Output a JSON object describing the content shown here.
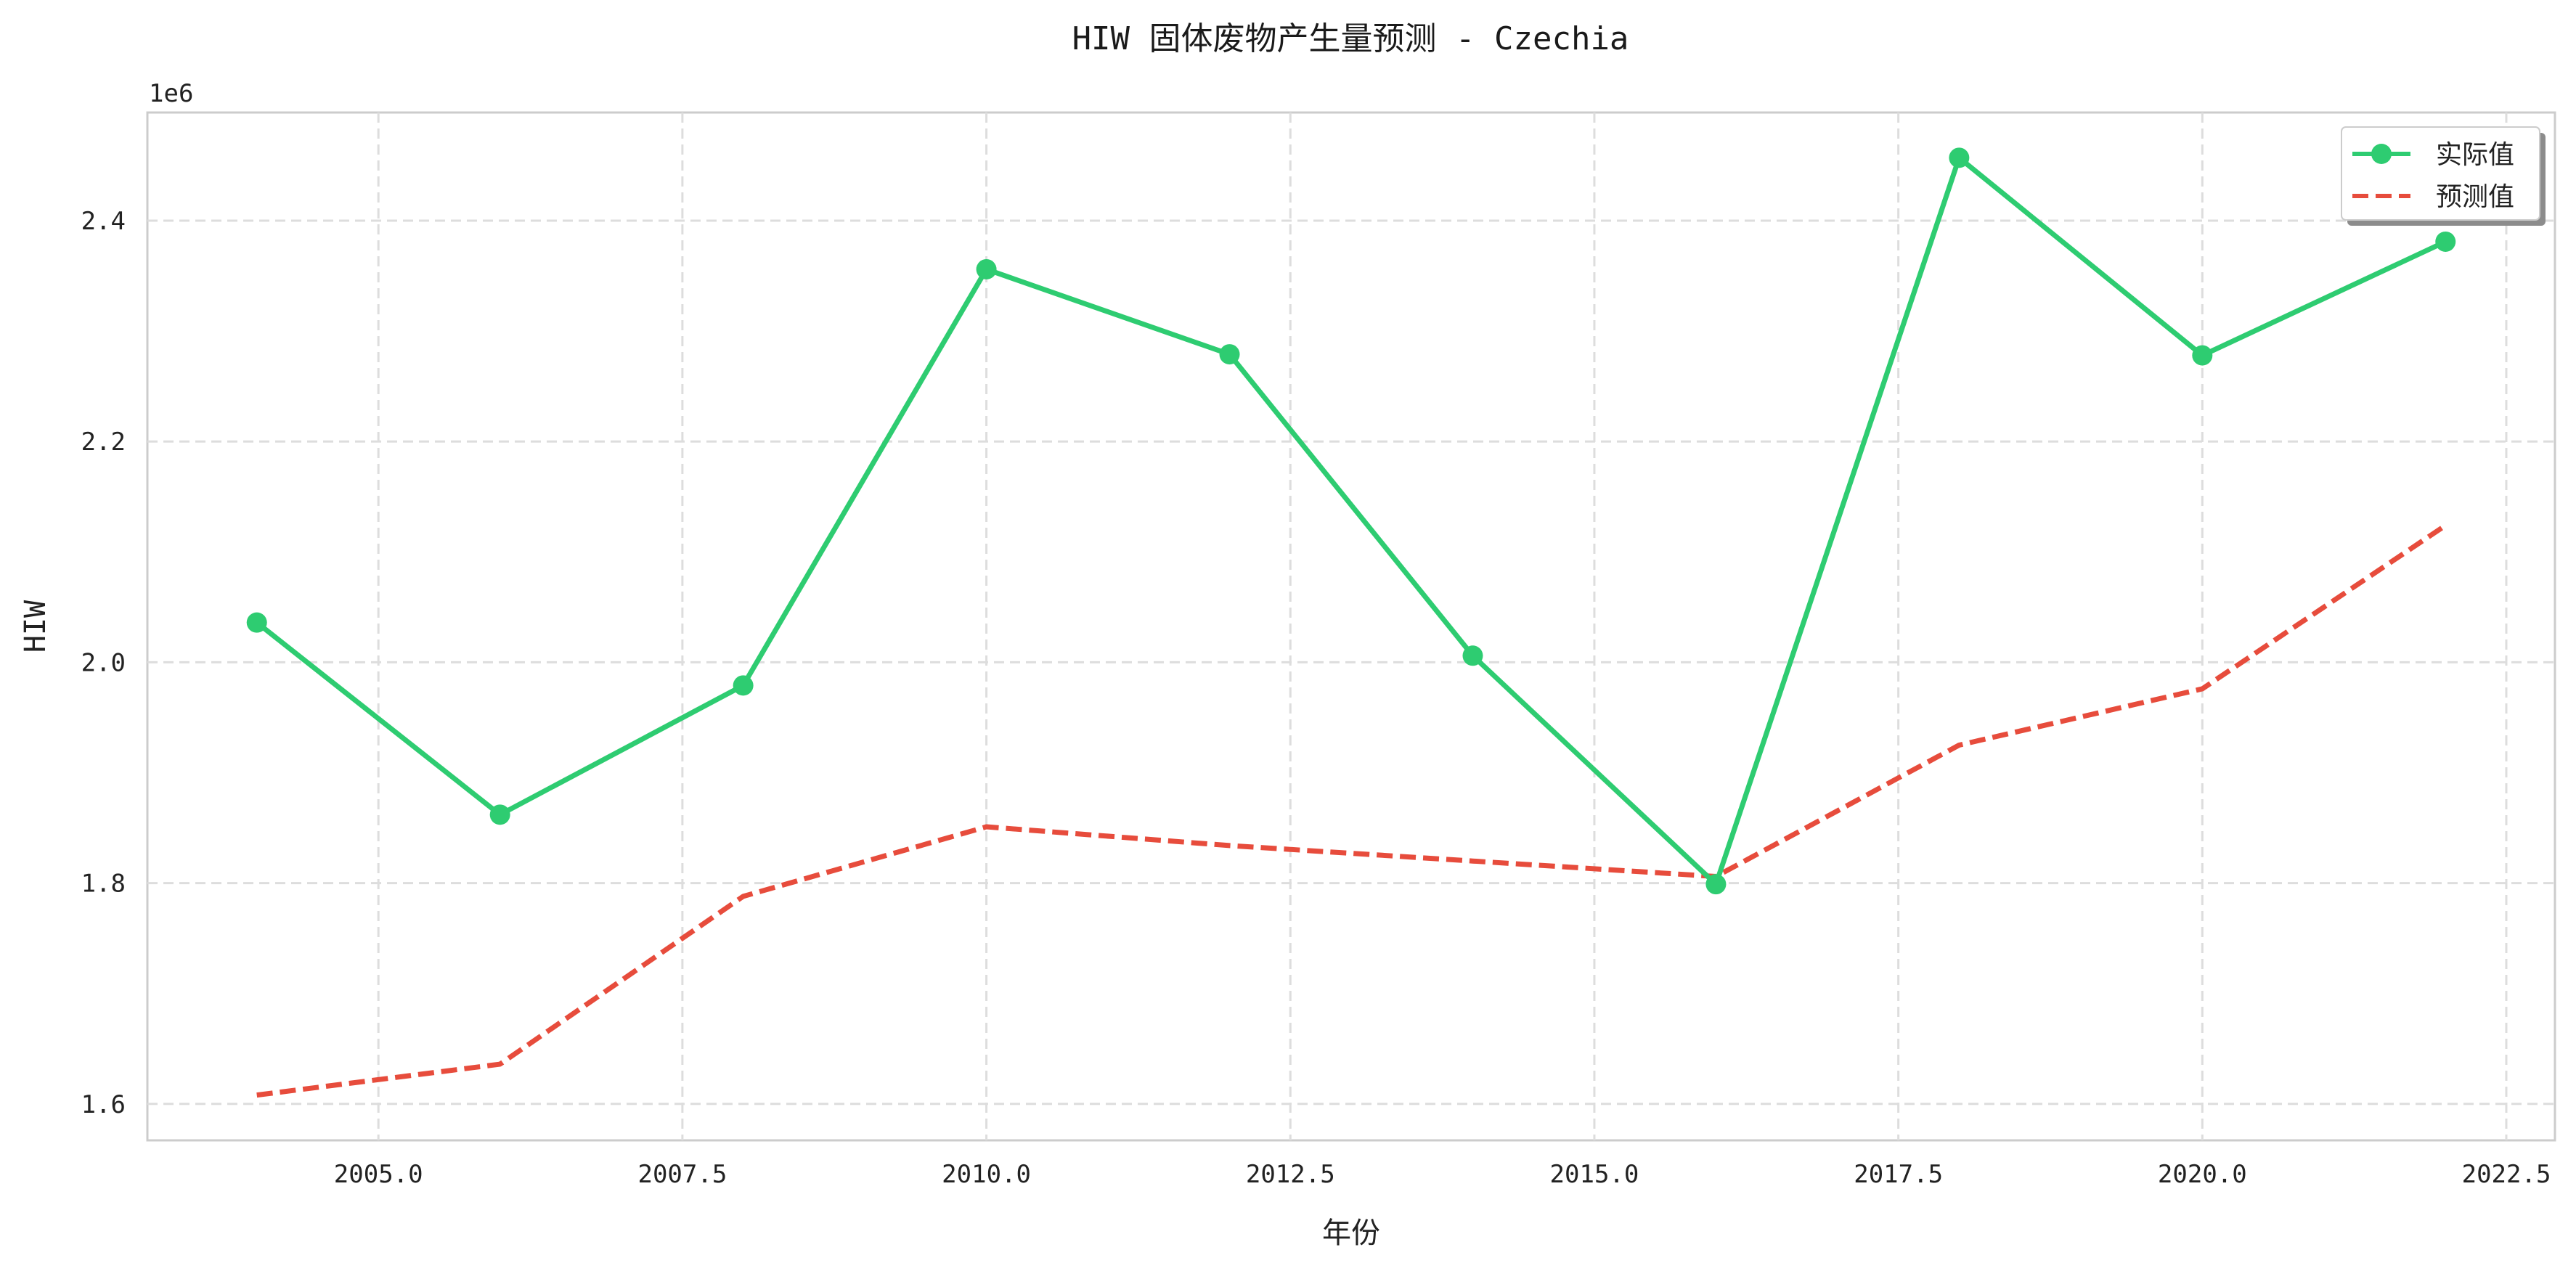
{
  "chart_data": {
    "type": "line",
    "title": "HIW 固体废物产生量预测 - Czechia",
    "xlabel": "年份",
    "ylabel": "HIW",
    "y_offset_label": "1e6",
    "xlim": [
      2003.1,
      2022.9
    ],
    "ylim": [
      1567000,
      2498000
    ],
    "x_ticks": [
      2005.0,
      2007.5,
      2010.0,
      2012.5,
      2015.0,
      2017.5,
      2020.0,
      2022.5
    ],
    "x_tick_labels": [
      "2005.0",
      "2007.5",
      "2010.0",
      "2012.5",
      "2015.0",
      "2017.5",
      "2020.0",
      "2022.5"
    ],
    "y_ticks": [
      1600000,
      1800000,
      2000000,
      2200000,
      2400000
    ],
    "y_tick_labels": [
      "1.6",
      "1.8",
      "2.0",
      "2.2",
      "2.4"
    ],
    "grid": true,
    "legend_placement": "top-right",
    "series": [
      {
        "name": "实际值",
        "color": "#2ecc71",
        "style": "solid-markers",
        "x": [
          2004,
          2006,
          2008,
          2010,
          2012,
          2014,
          2016,
          2018,
          2020,
          2022
        ],
        "values": [
          2036000,
          1862000,
          1979000,
          2356000,
          2279000,
          2006000,
          1799000,
          2457000,
          2278000,
          2381000
        ]
      },
      {
        "name": "预测值",
        "color": "#e74c3c",
        "style": "dashed",
        "x": [
          2004,
          2006,
          2008,
          2010,
          2012,
          2014,
          2016,
          2018,
          2020,
          2022
        ],
        "values": [
          1608000,
          1636000,
          1788000,
          1851000,
          1834000,
          1820000,
          1806000,
          1925000,
          1976000,
          2124000
        ]
      }
    ]
  }
}
